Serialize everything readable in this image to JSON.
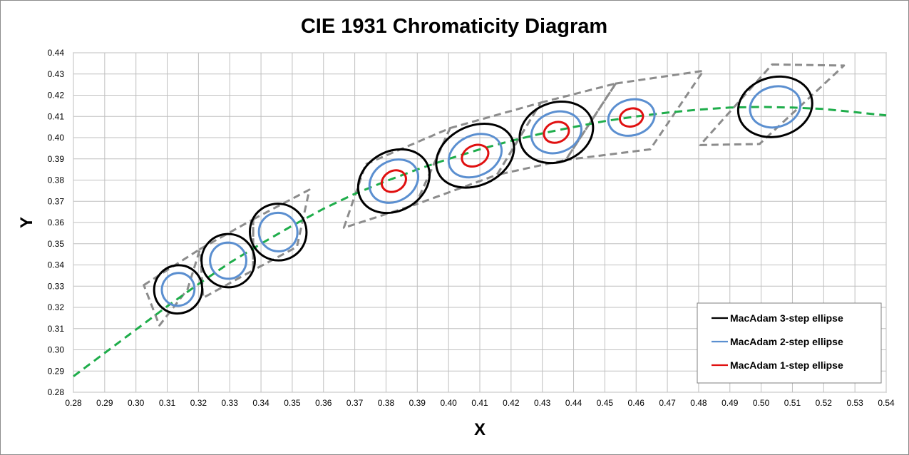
{
  "chart_data": {
    "type": "scatter",
    "title": "CIE 1931 Chromaticity Diagram",
    "xlabel": "X",
    "ylabel": "Y",
    "xlim": [
      0.28,
      0.54
    ],
    "ylim": [
      0.28,
      0.44
    ],
    "grid": true,
    "xticks": [
      "0.28",
      "0.29",
      "0.30",
      "0.31",
      "0.32",
      "0.33",
      "0.34",
      "0.35",
      "0.36",
      "0.37",
      "0.38",
      "0.39",
      "0.40",
      "0.41",
      "0.42",
      "0.43",
      "0.44",
      "0.45",
      "0.46",
      "0.47",
      "0.48",
      "0.49",
      "0.50",
      "0.51",
      "0.52",
      "0.53",
      "0.54"
    ],
    "yticks": [
      "0.28",
      "0.29",
      "0.30",
      "0.31",
      "0.32",
      "0.33",
      "0.34",
      "0.35",
      "0.36",
      "0.37",
      "0.38",
      "0.39",
      "0.40",
      "0.41",
      "0.42",
      "0.43",
      "0.44"
    ],
    "legend_position": "bottom-right",
    "colors": {
      "three_step": "#000000",
      "two_step": "#5b8fd0",
      "one_step": "#e01010",
      "planckian": "#1fad4b",
      "quadrangle": "#8c8c8c",
      "grid": "#bfbfbf"
    },
    "legend": [
      {
        "label": "MacAdam 3-step ellipse",
        "key": "three_step"
      },
      {
        "label": "MacAdam 2-step ellipse",
        "key": "two_step"
      },
      {
        "label": "MacAdam 1-step ellipse",
        "key": "one_step"
      }
    ],
    "planckian_locus": [
      [
        0.28,
        0.2875
      ],
      [
        0.29,
        0.2985
      ],
      [
        0.3,
        0.3095
      ],
      [
        0.31,
        0.3205
      ],
      [
        0.32,
        0.331
      ],
      [
        0.33,
        0.341
      ],
      [
        0.34,
        0.35
      ],
      [
        0.35,
        0.3585
      ],
      [
        0.36,
        0.3665
      ],
      [
        0.37,
        0.3735
      ],
      [
        0.38,
        0.3795
      ],
      [
        0.39,
        0.385
      ],
      [
        0.4,
        0.39
      ],
      [
        0.41,
        0.3945
      ],
      [
        0.42,
        0.3985
      ],
      [
        0.43,
        0.402
      ],
      [
        0.44,
        0.405
      ],
      [
        0.45,
        0.4078
      ],
      [
        0.46,
        0.41
      ],
      [
        0.47,
        0.4118
      ],
      [
        0.48,
        0.4132
      ],
      [
        0.49,
        0.4142
      ],
      [
        0.5,
        0.4145
      ],
      [
        0.51,
        0.4142
      ],
      [
        0.52,
        0.4135
      ],
      [
        0.53,
        0.412
      ],
      [
        0.54,
        0.4105
      ]
    ],
    "quadrangles": [
      [
        [
          0.3025,
          0.3305
        ],
        [
          0.3205,
          0.3475
        ],
        [
          0.3165,
          0.3285
        ],
        [
          0.3075,
          0.3115
        ]
      ],
      [
        [
          0.3205,
          0.3475
        ],
        [
          0.3375,
          0.3615
        ],
        [
          0.3375,
          0.3375
        ],
        [
          0.3215,
          0.3245
        ]
      ],
      [
        [
          0.3375,
          0.3615
        ],
        [
          0.3555,
          0.3755
        ],
        [
          0.3515,
          0.3485
        ],
        [
          0.3375,
          0.3375
        ]
      ],
      [
        [
          0.3735,
          0.3875
        ],
        [
          0.4005,
          0.4045
        ],
        [
          0.3895,
          0.3685
        ],
        [
          0.3665,
          0.3575
        ]
      ],
      [
        [
          0.4005,
          0.4045
        ],
        [
          0.4295,
          0.4165
        ],
        [
          0.4155,
          0.3825
        ],
        [
          0.3895,
          0.3685
        ]
      ],
      [
        [
          0.4295,
          0.4165
        ],
        [
          0.4535,
          0.4255
        ],
        [
          0.4375,
          0.3895
        ],
        [
          0.4155,
          0.3825
        ]
      ],
      [
        [
          0.4535,
          0.4255
        ],
        [
          0.4815,
          0.4315
        ],
        [
          0.4645,
          0.3945
        ],
        [
          0.4375,
          0.3895
        ]
      ],
      [
        [
          0.5035,
          0.4345
        ],
        [
          0.5265,
          0.434
        ],
        [
          0.4995,
          0.397
        ],
        [
          0.4805,
          0.3965
        ]
      ]
    ],
    "ellipses": [
      {
        "cx": 0.3135,
        "cy": 0.3285,
        "a3": 0.0078,
        "b3": 0.004,
        "rot": -50,
        "one_step": false
      },
      {
        "cx": 0.3295,
        "cy": 0.342,
        "a3": 0.0085,
        "b3": 0.0045,
        "rot": -45,
        "one_step": false
      },
      {
        "cx": 0.3455,
        "cy": 0.3555,
        "a3": 0.009,
        "b3": 0.0048,
        "rot": -45,
        "one_step": false
      },
      {
        "cx": 0.3825,
        "cy": 0.3795,
        "a3": 0.012,
        "b3": 0.005,
        "rot": -30,
        "one_step": true
      },
      {
        "cx": 0.4085,
        "cy": 0.3915,
        "a3": 0.013,
        "b3": 0.005,
        "rot": -25,
        "one_step": true
      },
      {
        "cx": 0.4345,
        "cy": 0.4025,
        "a3": 0.012,
        "b3": 0.005,
        "rot": -20,
        "one_step": true
      },
      {
        "cx": 0.4585,
        "cy": 0.4095,
        "a3": 0.0,
        "b3": 0.0,
        "rot": -15,
        "one_step": true,
        "two_only": true,
        "a2": 0.0075,
        "b2": 0.003
      },
      {
        "cx": 0.5045,
        "cy": 0.4145,
        "a3": 0.012,
        "b3": 0.005,
        "rot": -15,
        "one_step": false
      }
    ]
  }
}
